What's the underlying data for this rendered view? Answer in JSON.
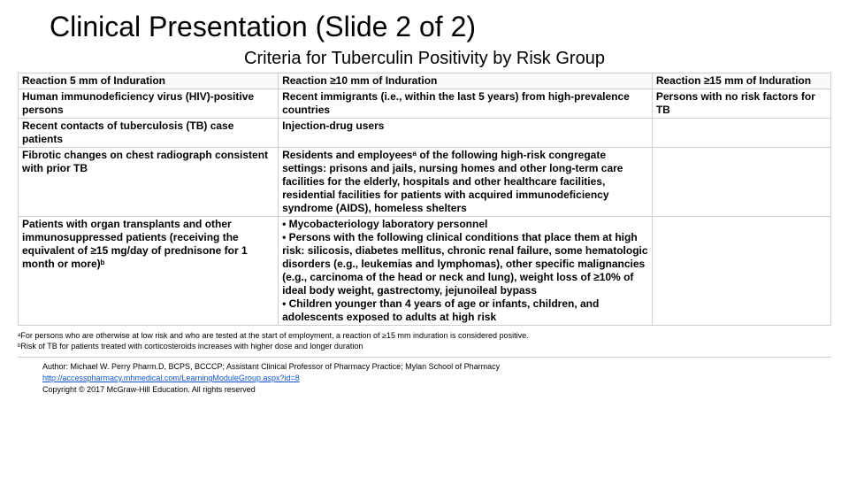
{
  "title": "Clinical Presentation (Slide 2 of 2)",
  "subtitle": "Criteria for Tuberculin Positivity by Risk Group",
  "table": {
    "columns": [
      "Reaction 5 mm of Induration",
      "Reaction ≥10 mm of Induration",
      "Reaction ≥15 mm of Induration"
    ],
    "rows": [
      [
        "Human immunodeficiency virus (HIV)-positive persons",
        "Recent immigrants (i.e., within the last 5 years) from high-prevalence countries",
        "Persons with no risk factors for TB"
      ],
      [
        "Recent contacts of tuberculosis (TB) case patients",
        "Injection-drug users",
        ""
      ],
      [
        "Fibrotic changes on chest radiograph consistent with prior TB",
        "Residents and employeesᵃ of the following high-risk congregate settings: prisons and jails, nursing homes and other long-term care facilities for the elderly, hospitals and other healthcare facilities, residential facilities for patients with acquired immunodeficiency syndrome (AIDS), homeless shelters",
        ""
      ],
      [
        "Patients with organ transplants and other immunosuppressed patients (receiving the equivalent of ≥15 mg/day of prednisone for 1 month or more)ᵇ",
        "• Mycobacteriology laboratory personnel\n• Persons with the following clinical conditions that place them at high risk: silicosis, diabetes mellitus, chronic renal failure, some hematologic disorders (e.g., leukemias and lymphomas), other specific malignancies (e.g., carcinoma of the head or neck and lung), weight loss of ≥10% of ideal body weight, gastrectomy, jejunoileal bypass\n• Children younger than 4 years of age or infants, children, and adolescents exposed to adults at high risk",
        ""
      ]
    ],
    "col_widths_pct": [
      32,
      46,
      22
    ],
    "border_color": "#cfcfcf",
    "header_bg": "#fafafa",
    "font_size_pt": 9,
    "cell_font_weight": "bold"
  },
  "footnotes": {
    "a": "ᵃFor persons who are otherwise at low risk and who are tested at the start of employment, a reaction of ≥15 mm induration is considered positive.",
    "b": "ᵇRisk of TB for patients treated with corticosteroids increases with higher dose and longer duration"
  },
  "attribution": {
    "author": "Author: Michael W. Perry Pharm.D, BCPS, BCCCP; Assistant Clinical Professor of Pharmacy Practice; Mylan School of Pharmacy",
    "link_text": "http://accesspharmacy.mhmedical.com/LearningModuleGroup.aspx?id=8",
    "copyright": "Copyright © 2017 McGraw-Hill Education. All rights reserved"
  },
  "colors": {
    "link": "#1155cc",
    "text": "#000000",
    "background": "#ffffff"
  }
}
